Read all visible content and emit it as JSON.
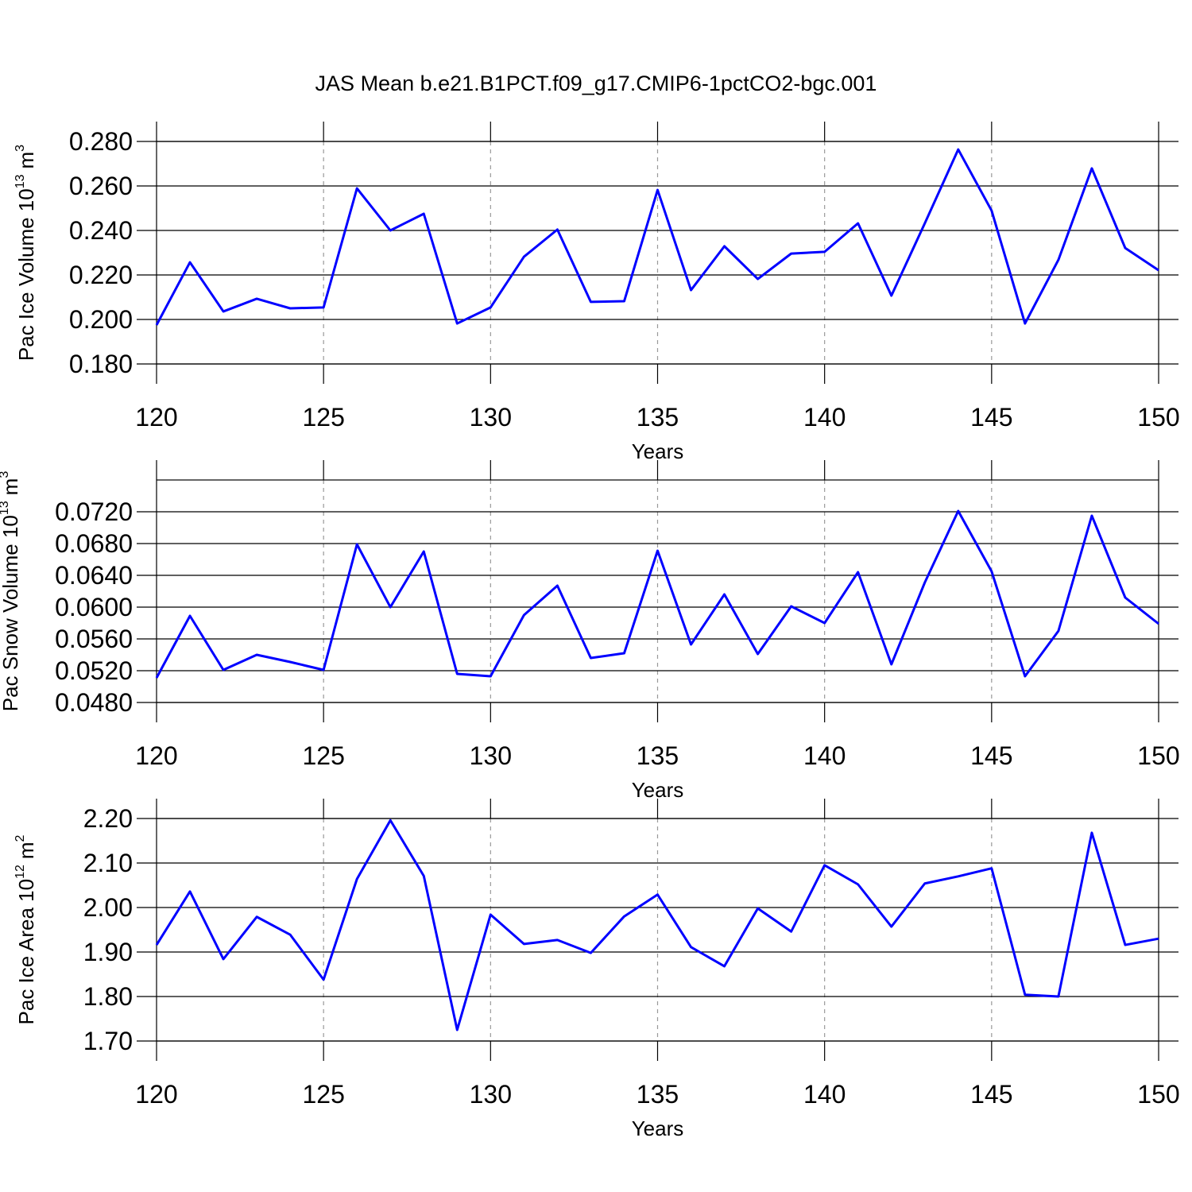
{
  "chart_data": [
    {
      "type": "line",
      "title": "JAS Mean b.e21.B1PCT.f09_g17.CMIP6-1pctCO2-bgc.001",
      "ylabel": {
        "text": "Pac Ice Volume 10",
        "exponent": "13",
        "unit": "m",
        "unit_exponent": "3"
      },
      "xlabel": "Years",
      "x": [
        120,
        121,
        122,
        123,
        124,
        125,
        126,
        127,
        128,
        129,
        130,
        131,
        132,
        133,
        134,
        135,
        136,
        137,
        138,
        139,
        140,
        141,
        142,
        143,
        144,
        145,
        146,
        147,
        148,
        149,
        150
      ],
      "series": [
        {
          "color": "#0000ff",
          "values": [
            0.1975,
            0.2257,
            0.2036,
            0.2093,
            0.205,
            0.2054,
            0.2589,
            0.24,
            0.2475,
            0.1982,
            0.2054,
            0.2282,
            0.2404,
            0.2079,
            0.2082,
            0.2582,
            0.2132,
            0.2329,
            0.2182,
            0.2296,
            0.2304,
            0.2432,
            0.2107,
            0.2432,
            0.2764,
            0.2489,
            0.1982,
            0.2268,
            0.2679,
            0.2321,
            0.2221
          ]
        }
      ],
      "xlim": [
        120,
        150
      ],
      "xticks": [
        120,
        125,
        130,
        135,
        140,
        145,
        150
      ],
      "ylim": [
        0.18,
        0.28
      ],
      "yticks": [
        {
          "value": 0.18,
          "label": "0.180"
        },
        {
          "value": 0.2,
          "label": "0.200"
        },
        {
          "value": 0.22,
          "label": "0.220"
        },
        {
          "value": 0.24,
          "label": "0.240"
        },
        {
          "value": 0.26,
          "label": "0.260"
        },
        {
          "value": 0.28,
          "label": "0.280"
        }
      ],
      "grid": "x"
    },
    {
      "type": "line",
      "ylabel": {
        "text": "Pac Snow Volume 10",
        "exponent": "13",
        "unit": "m",
        "unit_exponent": "3"
      },
      "xlabel": "Years",
      "x": [
        120,
        121,
        122,
        123,
        124,
        125,
        126,
        127,
        128,
        129,
        130,
        131,
        132,
        133,
        134,
        135,
        136,
        137,
        138,
        139,
        140,
        141,
        142,
        143,
        144,
        145,
        146,
        147,
        148,
        149,
        150
      ],
      "series": [
        {
          "color": "#0000ff",
          "values": [
            0.0511,
            0.0589,
            0.0521,
            0.054,
            0.0531,
            0.0521,
            0.0679,
            0.06,
            0.067,
            0.0516,
            0.0513,
            0.059,
            0.0627,
            0.0536,
            0.0542,
            0.0671,
            0.0553,
            0.0616,
            0.0541,
            0.0601,
            0.058,
            0.0644,
            0.0528,
            0.0631,
            0.0721,
            0.0645,
            0.0513,
            0.057,
            0.0715,
            0.0612,
            0.0579
          ]
        }
      ],
      "xlim": [
        120,
        150
      ],
      "xticks": [
        120,
        125,
        130,
        135,
        140,
        145,
        150
      ],
      "ylim": [
        0.048,
        0.076
      ],
      "yticks": [
        {
          "value": 0.048,
          "label": "0.0480"
        },
        {
          "value": 0.052,
          "label": "0.0520"
        },
        {
          "value": 0.056,
          "label": "0.0560"
        },
        {
          "value": 0.06,
          "label": "0.0600"
        },
        {
          "value": 0.064,
          "label": "0.0640"
        },
        {
          "value": 0.068,
          "label": "0.0680"
        },
        {
          "value": 0.072,
          "label": "0.0720"
        }
      ],
      "grid": "x"
    },
    {
      "type": "line",
      "ylabel": {
        "text": "Pac Ice Area 10",
        "exponent": "12",
        "unit": "m",
        "unit_exponent": "2"
      },
      "xlabel": "Years",
      "x": [
        120,
        121,
        122,
        123,
        124,
        125,
        126,
        127,
        128,
        129,
        130,
        131,
        132,
        133,
        134,
        135,
        136,
        137,
        138,
        139,
        140,
        141,
        142,
        143,
        144,
        145,
        146,
        147,
        148,
        149,
        150
      ],
      "series": [
        {
          "color": "#0000ff",
          "values": [
            1.916,
            2.036,
            1.884,
            1.979,
            1.939,
            1.838,
            2.064,
            2.196,
            2.071,
            1.725,
            1.984,
            1.918,
            1.927,
            1.898,
            1.98,
            2.029,
            1.911,
            1.868,
            1.998,
            1.946,
            2.095,
            2.052,
            1.957,
            2.054,
            2.07,
            2.088,
            1.804,
            1.8,
            2.168,
            1.916,
            1.93
          ]
        }
      ],
      "xlim": [
        120,
        150
      ],
      "xticks": [
        120,
        125,
        130,
        135,
        140,
        145,
        150
      ],
      "ylim": [
        1.7,
        2.2
      ],
      "yticks": [
        {
          "value": 1.7,
          "label": "1.70"
        },
        {
          "value": 1.8,
          "label": "1.80"
        },
        {
          "value": 1.9,
          "label": "1.90"
        },
        {
          "value": 2.0,
          "label": "2.00"
        },
        {
          "value": 2.1,
          "label": "2.10"
        },
        {
          "value": 2.2,
          "label": "2.20"
        }
      ],
      "grid": "x"
    }
  ]
}
